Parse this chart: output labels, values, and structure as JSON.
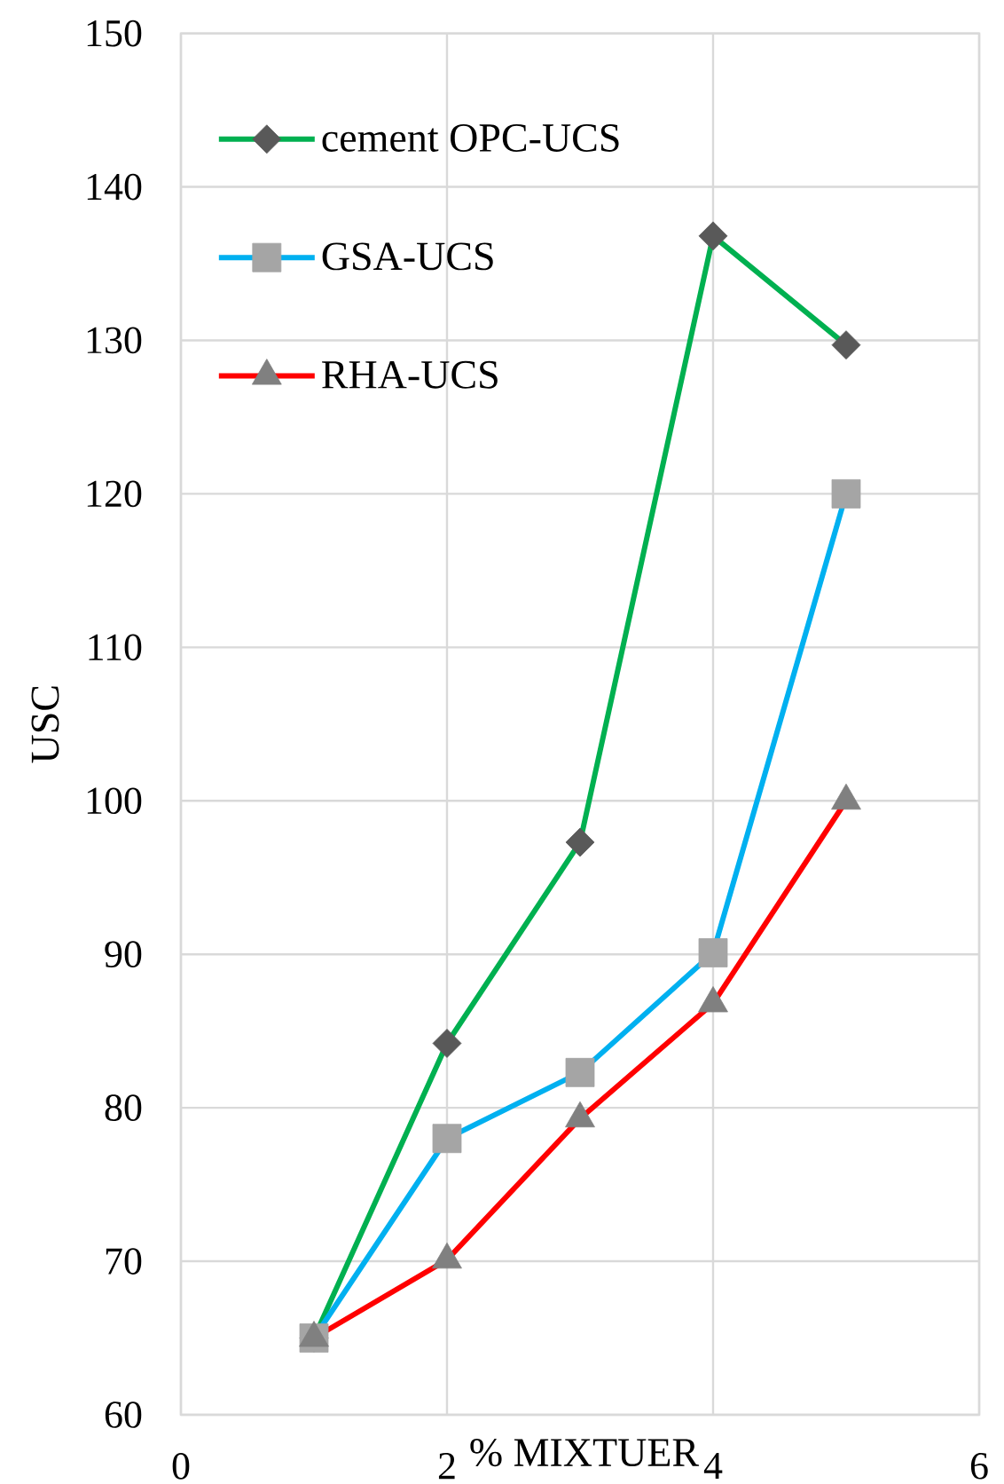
{
  "chart_data": {
    "type": "line",
    "xlabel": "% MIXTUER",
    "ylabel": "USC",
    "x": [
      1,
      2,
      3,
      4,
      5
    ],
    "series": [
      {
        "name": "cement OPC-UCS",
        "color": "#00b050",
        "marker": "diamond",
        "colors": [
          "#595959",
          "#595959",
          "#595959",
          "#595959",
          "#595959"
        ],
        "values": [
          65,
          84.2,
          97.3,
          136.8,
          129.7
        ]
      },
      {
        "name": "GSA-UCS",
        "color": "#00b0f0",
        "marker": "square",
        "colors": [
          "#a5a5a5",
          "#a5a5a5",
          "#a5a5a5",
          "#a5a5a5",
          "#a5a5a5"
        ],
        "values": [
          65,
          78.0,
          82.3,
          90.1,
          120.0
        ]
      },
      {
        "name": "RHA-UCS",
        "color": "#ff0000",
        "marker": "triangle",
        "colors": [
          "#808080",
          "#808080",
          "#808080",
          "#808080",
          "#808080"
        ],
        "values": [
          65,
          70.1,
          79.3,
          86.8,
          100.0
        ]
      }
    ],
    "xlim": [
      0,
      6
    ],
    "xticks": [
      0,
      2,
      4,
      6
    ],
    "ylim": [
      60,
      150
    ],
    "yticks": [
      60,
      70,
      80,
      90,
      100,
      110,
      120,
      130,
      140,
      150
    ],
    "grid": true,
    "legend": "top left",
    "line_style": "solid"
  }
}
